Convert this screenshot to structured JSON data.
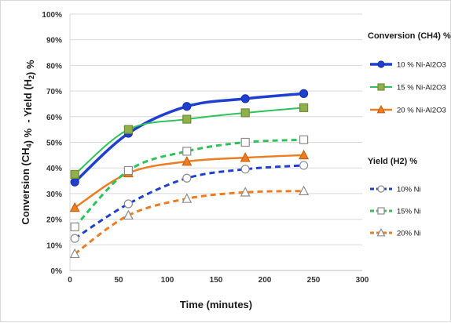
{
  "chart_data": {
    "type": "line",
    "xlabel": "Time (minutes)",
    "ylabel": "Conversion (CH4) %  - Yield (H2) %",
    "xlim": [
      0,
      300
    ],
    "ylim": [
      0,
      100
    ],
    "x_ticks": [
      0,
      50,
      100,
      150,
      200,
      250,
      300
    ],
    "y_ticks": [
      0,
      10,
      20,
      30,
      40,
      50,
      60,
      70,
      80,
      90,
      100
    ],
    "y_tick_suffix": "%",
    "grid": "horizontal",
    "legend_placement": "right",
    "x": [
      5,
      60,
      120,
      180,
      240
    ],
    "legend_groups": [
      {
        "title": "Conversion (CH4) %",
        "series_indices": [
          0,
          1,
          2
        ]
      },
      {
        "title": "Yield (H2) %",
        "series_indices": [
          3,
          4,
          5
        ]
      }
    ],
    "series": [
      {
        "name": "10 % Ni-Al2O3",
        "values": [
          34.5,
          53.5,
          64,
          67,
          69
        ],
        "color": "#1f3fd0",
        "marker": "circle",
        "filled": true,
        "dashed": false,
        "stroke_width": 3.5
      },
      {
        "name": "15 % Ni-Al2O3",
        "values": [
          37.5,
          55,
          59,
          61.5,
          63.5
        ],
        "color": "#2ec35a",
        "marker": "square",
        "filled": true,
        "marker_fill": "#8fb04b",
        "dashed": false,
        "stroke_width": 2
      },
      {
        "name": "20 % Ni-Al2O3",
        "values": [
          24.5,
          38,
          42.5,
          44,
          45
        ],
        "color": "#ee7d22",
        "marker": "triangle",
        "filled": true,
        "dashed": false,
        "stroke_width": 2.5
      },
      {
        "name": "10% Ni",
        "values": [
          12.5,
          26,
          36,
          39.5,
          41
        ],
        "color": "#1f3fd0",
        "marker": "circle",
        "filled": false,
        "dashed": true,
        "stroke_width": 3
      },
      {
        "name": "15% Ni",
        "values": [
          17,
          39,
          46.5,
          50,
          51
        ],
        "color": "#2ec35a",
        "marker": "square",
        "filled": false,
        "dashed": true,
        "stroke_width": 3
      },
      {
        "name": "20% Ni",
        "values": [
          6.5,
          21.5,
          28,
          30.5,
          31
        ],
        "color": "#ee7d22",
        "marker": "triangle",
        "filled": false,
        "dashed": true,
        "stroke_width": 3
      }
    ]
  }
}
